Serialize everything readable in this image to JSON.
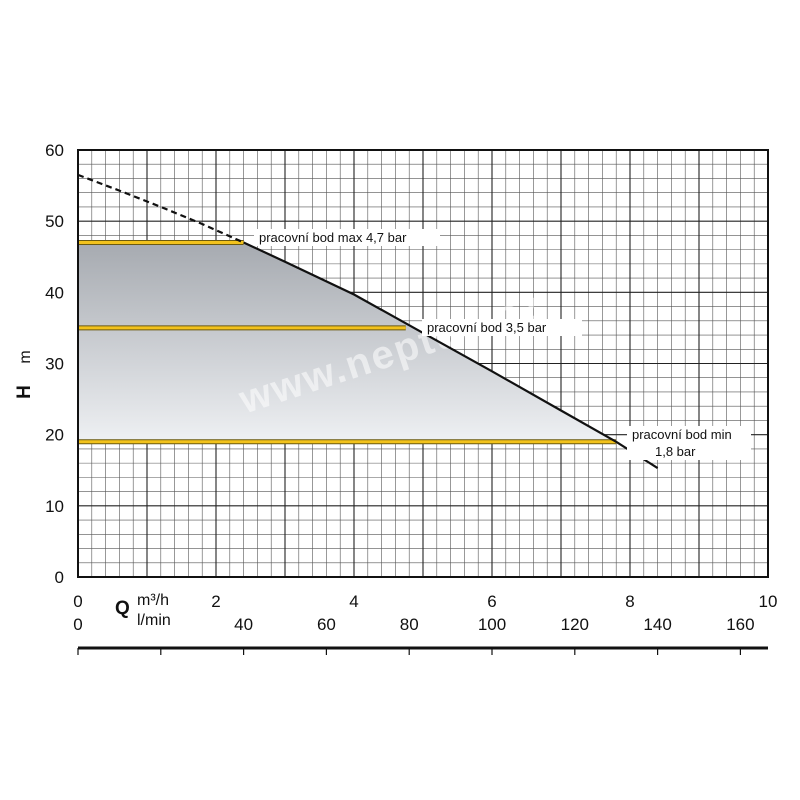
{
  "chart_data": {
    "type": "line",
    "xlabel_symbol": "Q",
    "xlabel_unit_primary": "m³/h",
    "xlabel_unit_secondary": "l/min",
    "ylabel_symbol": "H",
    "ylabel_unit": "m",
    "xlim": [
      0,
      10
    ],
    "ylim": [
      0,
      60
    ],
    "x_ticks": [
      0,
      2,
      4,
      6,
      8,
      10
    ],
    "y_ticks": [
      0,
      10,
      20,
      30,
      40,
      50,
      60
    ],
    "secondary_x_ticks": [
      0,
      40,
      60,
      80,
      100,
      120,
      140,
      160
    ],
    "grid": true,
    "series": [
      {
        "style": "dashed",
        "x": [
          0,
          0.6,
          1.2,
          1.8,
          2.4
        ],
        "y": [
          56.5,
          54.3,
          52.0,
          49.6,
          47.0
        ]
      },
      {
        "style": "solid",
        "x": [
          2.4,
          3.0,
          4.0,
          5.0,
          6.0,
          7.0,
          7.8,
          8.4
        ],
        "y": [
          47.0,
          44.3,
          39.7,
          34.3,
          28.9,
          23.4,
          19.0,
          15.3
        ]
      }
    ],
    "working_points": [
      {
        "label": "pracovní bod max 4,7 bar",
        "x_end": 2.4,
        "y": 47
      },
      {
        "label": "pracovní bod 3,5 bar",
        "x_end": 4.75,
        "y": 35
      },
      {
        "label": "pracovní bod min",
        "label2": "1,8 bar",
        "x_end": 7.8,
        "y": 19
      }
    ],
    "watermark": "www.neptun.cz"
  }
}
